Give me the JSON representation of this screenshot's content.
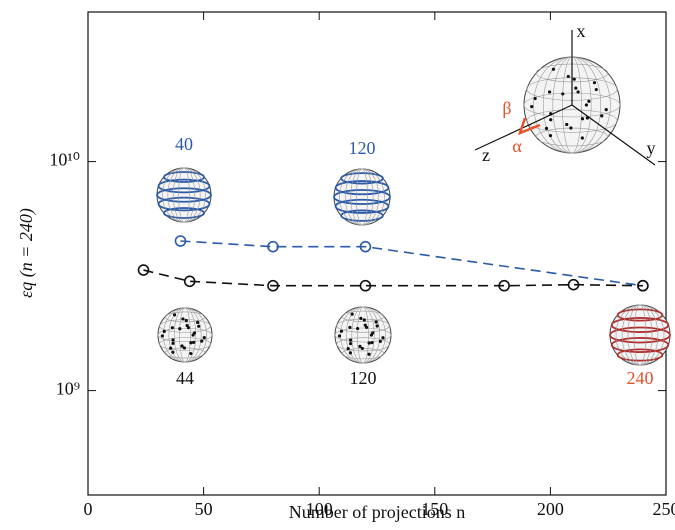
{
  "chart_data": {
    "type": "line",
    "xlabel": "Number of projections n",
    "ylabel": "εq (n = 240)",
    "xlim": [
      0,
      250
    ],
    "xticks": [
      0,
      50,
      100,
      150,
      200,
      250
    ],
    "ylim": [
      350000000,
      45000000000
    ],
    "log_y": true,
    "yticks": [
      {
        "value": 1000000000,
        "label": "10⁹"
      },
      {
        "value": 10000000000,
        "label": "10¹⁰"
      }
    ],
    "series": [
      {
        "name": "blue",
        "color": "#2b5aa8",
        "x": [
          40,
          80,
          120,
          240
        ],
        "values": [
          4500000000,
          4250000000,
          4250000000,
          2870000000
        ]
      },
      {
        "name": "black",
        "color": "#111111",
        "x": [
          24,
          44,
          80,
          120,
          180,
          210,
          240
        ],
        "values": [
          3360000000,
          3000000000,
          2870000000,
          2870000000,
          2870000000,
          2900000000,
          2870000000
        ]
      }
    ],
    "annotations": [
      "40",
      "120",
      "44",
      "120",
      "240",
      "x",
      "y",
      "z",
      "α",
      "β"
    ]
  }
}
